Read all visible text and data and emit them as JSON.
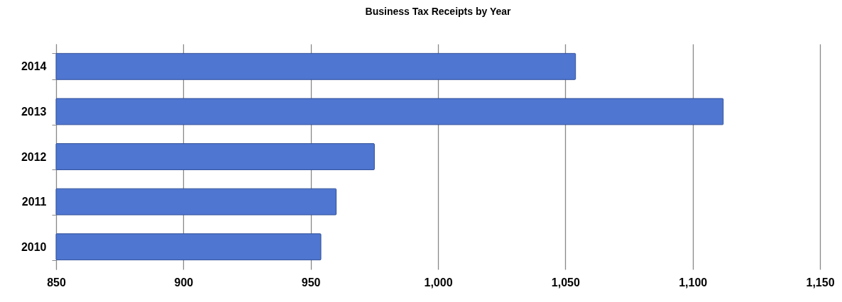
{
  "chart_data": {
    "type": "bar",
    "orientation": "horizontal",
    "title": "Business Tax Receipts by Year",
    "categories": [
      "2014",
      "2013",
      "2012",
      "2011",
      "2010"
    ],
    "values": [
      1054,
      1112,
      975,
      960,
      954
    ],
    "color": "#4f76d0",
    "xlim": [
      850,
      1150
    ],
    "xticks": [
      850,
      900,
      950,
      {
        "value": 1000,
        "label": "1,000"
      },
      {
        "value": 1050,
        "label": "1,050"
      },
      {
        "value": 1100,
        "label": "1,100"
      },
      {
        "value": 1150,
        "label": "1,150"
      }
    ],
    "grid": "x"
  }
}
